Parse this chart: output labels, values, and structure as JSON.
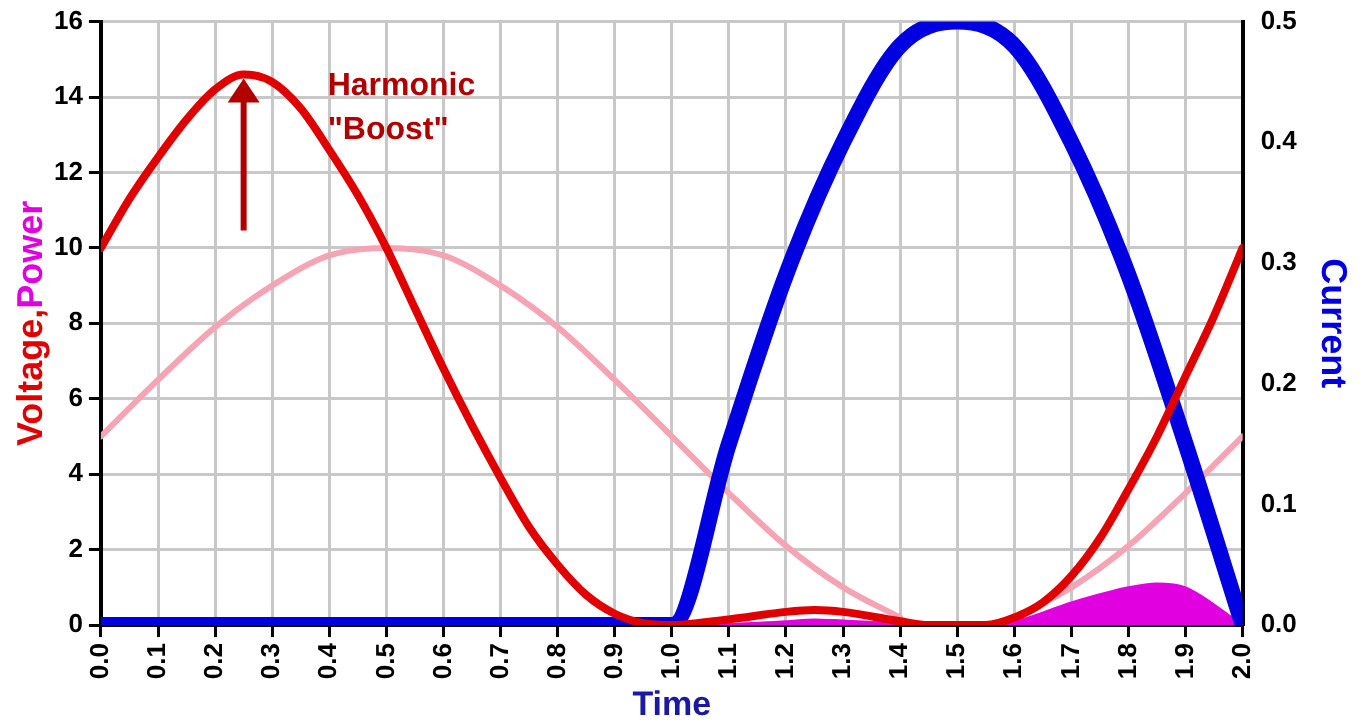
{
  "chart_data": {
    "type": "line",
    "xlabel": "Time",
    "ylabel": "Voltage,Power",
    "y2label": "Current",
    "xlim": [
      0,
      2
    ],
    "xticks": [
      {
        "value": 0,
        "label": "0.0"
      },
      0.1,
      0.2,
      0.3,
      0.4,
      0.5,
      0.6,
      0.7,
      0.8,
      0.9,
      {
        "value": 1,
        "label": "1.0"
      },
      1.1,
      1.2,
      1.3,
      1.4,
      1.5,
      1.6,
      1.7,
      1.8,
      1.9,
      {
        "value": 2,
        "label": "2.0"
      }
    ],
    "ylim": [
      0,
      16
    ],
    "yticks": [
      0,
      2,
      4,
      6,
      8,
      10,
      12,
      14,
      16
    ],
    "y2lim": [
      0,
      0.5
    ],
    "y2ticks": [
      {
        "value": 0,
        "label": "0.0"
      },
      0.1,
      0.2,
      0.3,
      0.4,
      0.5
    ],
    "grid": true,
    "legend": false,
    "marker": "none",
    "line_style": "solid",
    "annotations": [
      {
        "text": "Harmonic\n\"Boost\"",
        "x": 0.25,
        "y": 14.6
      }
    ],
    "series": [
      {
        "color": "#f4a4b4",
        "x": [
          0,
          0.1,
          0.2,
          0.3,
          0.4,
          0.5,
          0.6,
          0.7,
          0.8,
          0.9,
          1,
          1.1,
          1.2,
          1.3,
          1.4,
          1.5,
          1.6,
          1.7,
          1.8,
          1.9,
          2
        ],
        "values": [
          5,
          6.5,
          7.9,
          9,
          9.8,
          10,
          9.8,
          9,
          7.9,
          6.5,
          5,
          3.5,
          2.1,
          1,
          0.2,
          null,
          0.2,
          1,
          2.1,
          3.5,
          5
        ]
      },
      {
        "type": "area",
        "color": "#e000e0",
        "x": [
          0,
          1,
          1.1,
          1.2,
          1.25,
          1.3,
          1.4,
          1.5,
          1.6,
          1.7,
          1.8,
          1.85,
          1.9,
          2
        ],
        "values": [
          0,
          0,
          0.03,
          0.1,
          0.15,
          0.12,
          0.05,
          0,
          0.1,
          0.6,
          1,
          1.1,
          1,
          0
        ]
      },
      {
        "color": "#0000e0",
        "axis": "y2",
        "x": [
          0,
          1,
          1.1,
          1.2,
          1.3,
          1.4,
          1.5,
          1.6,
          1.7,
          1.8,
          1.9,
          2
        ],
        "values": [
          0,
          0,
          0.15,
          0.29,
          0.4,
          0.48,
          0.5,
          0.48,
          0.4,
          0.29,
          0.15,
          0
        ]
      },
      {
        "color": "#e00000",
        "x": [
          0,
          0.05,
          0.1,
          0.15,
          0.2,
          0.25,
          0.3,
          0.35,
          0.4,
          0.45,
          0.5,
          0.55,
          0.6,
          0.65,
          0.7,
          0.75,
          0.8,
          0.85,
          0.9,
          0.95,
          1,
          1.1,
          1.2,
          1.25,
          1.3,
          1.4,
          1.45,
          1.55,
          1.6,
          1.65,
          1.7,
          1.75,
          1.8,
          1.85,
          1.9,
          1.95,
          2
        ],
        "values": [
          10,
          11.3,
          12.4,
          13.4,
          14.2,
          14.6,
          14.4,
          13.7,
          12.6,
          11.4,
          10,
          8.4,
          6.8,
          5.3,
          3.9,
          2.6,
          1.6,
          0.8,
          0.3,
          0.05,
          0,
          0.15,
          0.35,
          0.4,
          0.35,
          0.1,
          0,
          0,
          0.2,
          0.6,
          1.3,
          2.3,
          3.6,
          5,
          6.6,
          8.2,
          10
        ]
      }
    ]
  }
}
